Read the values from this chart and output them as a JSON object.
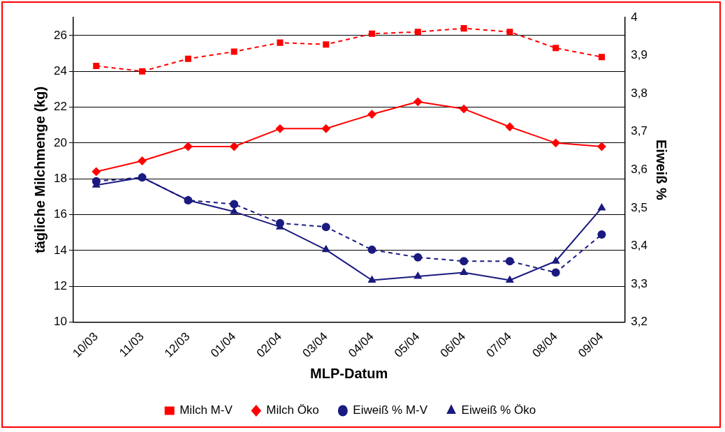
{
  "chart_data": {
    "type": "line",
    "xlabel": "MLP-Datum",
    "ylabel": "tägliche Milchmenge (kg)",
    "y2label": "Eiweiß %",
    "categories": [
      "10/03",
      "11/03",
      "12/03",
      "01/04",
      "02/04",
      "03/04",
      "04/04",
      "05/04",
      "06/04",
      "07/04",
      "08/04",
      "09/04"
    ],
    "series": [
      {
        "name": "Milch M-V",
        "color": "#ff0000",
        "marker": "square",
        "line_style": "dashed",
        "values": [
          24.3,
          24.0,
          24.7,
          25.1,
          25.6,
          25.5,
          26.1,
          26.2,
          26.4,
          26.2,
          25.3,
          24.8
        ]
      },
      {
        "name": "Milch Öko",
        "color": "#ff0000",
        "marker": "diamond",
        "line_style": "solid",
        "values": [
          18.4,
          19.0,
          19.8,
          19.8,
          20.8,
          20.8,
          21.6,
          22.3,
          21.9,
          20.9,
          20.0,
          19.8
        ]
      },
      {
        "name": "Eiweiß % M-V",
        "color": "#1a1a80",
        "marker": "circle",
        "line_style": "dashed",
        "axis": "y2",
        "values": [
          3.57,
          3.58,
          3.52,
          3.51,
          3.46,
          3.45,
          3.39,
          3.37,
          3.36,
          3.36,
          3.33,
          3.43
        ]
      },
      {
        "name": "Eiweiß % Öko",
        "color": "#1a1a80",
        "marker": "triangle",
        "line_style": "solid",
        "axis": "y2",
        "values": [
          3.56,
          3.58,
          3.52,
          3.49,
          3.45,
          3.39,
          3.31,
          3.32,
          3.33,
          3.31,
          3.36,
          3.5
        ]
      }
    ],
    "ylim": [
      10,
      27
    ],
    "yticks": [
      10,
      12,
      14,
      16,
      18,
      20,
      22,
      24,
      26
    ],
    "y2lim": [
      3.2,
      4
    ],
    "y2ticks": [
      {
        "value": 3.2,
        "label": "3,2"
      },
      {
        "value": 3.3,
        "label": "3,3"
      },
      {
        "value": 3.4,
        "label": "3,4"
      },
      {
        "value": 3.5,
        "label": "3,5"
      },
      {
        "value": 3.6,
        "label": "3,6"
      },
      {
        "value": 3.7,
        "label": "3,7"
      },
      {
        "value": 3.8,
        "label": "3,8"
      },
      {
        "value": 3.9,
        "label": "3,9"
      },
      4
    ],
    "grid": "y",
    "legend": "bottom"
  }
}
